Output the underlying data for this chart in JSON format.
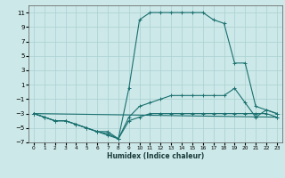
{
  "xlabel": "Humidex (Indice chaleur)",
  "xlim": [
    -0.5,
    23.5
  ],
  "ylim": [
    -7,
    12
  ],
  "xticks": [
    0,
    1,
    2,
    3,
    4,
    5,
    6,
    7,
    8,
    9,
    10,
    11,
    12,
    13,
    14,
    15,
    16,
    17,
    18,
    19,
    20,
    21,
    22,
    23
  ],
  "yticks": [
    -7,
    -5,
    -3,
    -1,
    1,
    3,
    5,
    7,
    9,
    11
  ],
  "background_color": "#cce8e8",
  "grid_color": "#aad0d0",
  "line_color": "#1a7070",
  "line1_x": [
    0,
    1,
    2,
    3,
    4,
    5,
    6,
    7,
    8,
    9,
    10,
    11,
    12,
    13,
    14,
    15,
    16,
    17,
    18,
    19,
    20,
    21,
    22,
    23
  ],
  "line1_y": [
    -3,
    -3.5,
    -4,
    -4,
    -4.5,
    -5,
    -5.5,
    -6,
    -6.5,
    0.5,
    10,
    11,
    11,
    11,
    11,
    11,
    11,
    10,
    9.5,
    4,
    4,
    -2,
    -2.5,
    -3
  ],
  "line2_x": [
    0,
    1,
    2,
    3,
    4,
    5,
    6,
    7,
    8,
    9,
    10,
    11,
    12,
    13,
    14,
    15,
    16,
    17,
    18,
    19,
    20,
    21,
    22,
    23
  ],
  "line2_y": [
    -3,
    -3.5,
    -4,
    -4,
    -4.5,
    -5,
    -5.5,
    -5.5,
    -6.5,
    -3.5,
    -2,
    -1.5,
    -1,
    -0.5,
    -0.5,
    -0.5,
    -0.5,
    -0.5,
    -0.5,
    0.5,
    -1.5,
    -3.5,
    -2.5,
    -3
  ],
  "line3_x": [
    0,
    1,
    2,
    3,
    4,
    5,
    6,
    7,
    8,
    9,
    10,
    11,
    12,
    13,
    14,
    15,
    16,
    17,
    18,
    19,
    20,
    21,
    22,
    23
  ],
  "line3_y": [
    -3,
    -3.5,
    -4,
    -4,
    -4.5,
    -5,
    -5.5,
    -5.8,
    -6.5,
    -4,
    -3.5,
    -3,
    -3,
    -3,
    -3,
    -3,
    -3,
    -3,
    -3,
    -3,
    -3,
    -3,
    -3,
    -3.5
  ],
  "line4_x": [
    0,
    23
  ],
  "line4_y": [
    -3,
    -3.5
  ]
}
